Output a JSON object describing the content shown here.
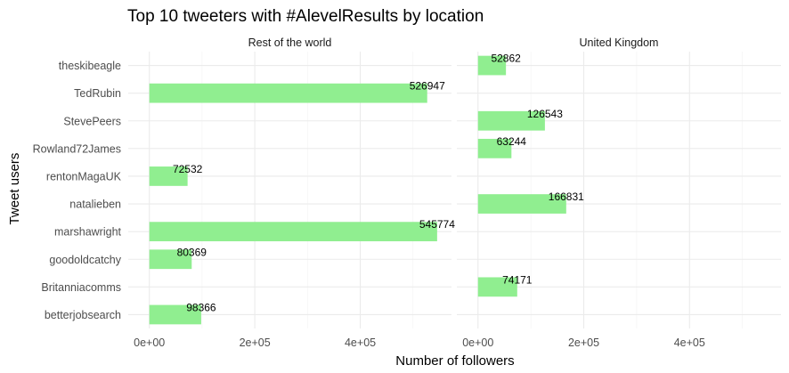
{
  "chart_data": {
    "type": "bar",
    "orientation": "horizontal",
    "title": "Top 10 tweeters with #AlevelResults by location",
    "xlabel": "Number of followers",
    "ylabel": "Tweet users",
    "categories": [
      "theskibeagle",
      "TedRubin",
      "StevePeers",
      "Rowland72James",
      "rentonMagaUK",
      "natalieben",
      "marshawright",
      "goodoldcatchy",
      "Britanniacomms",
      "betterjobsearch"
    ],
    "xlim": [
      -40000,
      573000
    ],
    "xticks": [
      0,
      200000,
      400000
    ],
    "xtick_labels": [
      "0e+00",
      "2e+05",
      "4e+05"
    ],
    "grid": true,
    "bar_color": "#90EE90",
    "facets": [
      {
        "name": "Rest of the world",
        "values": [
          null,
          526947,
          null,
          null,
          72532,
          null,
          545774,
          80369,
          null,
          98366
        ]
      },
      {
        "name": "United Kingdom",
        "values": [
          52862,
          null,
          126543,
          63244,
          null,
          166831,
          null,
          null,
          74171,
          null
        ]
      }
    ]
  }
}
